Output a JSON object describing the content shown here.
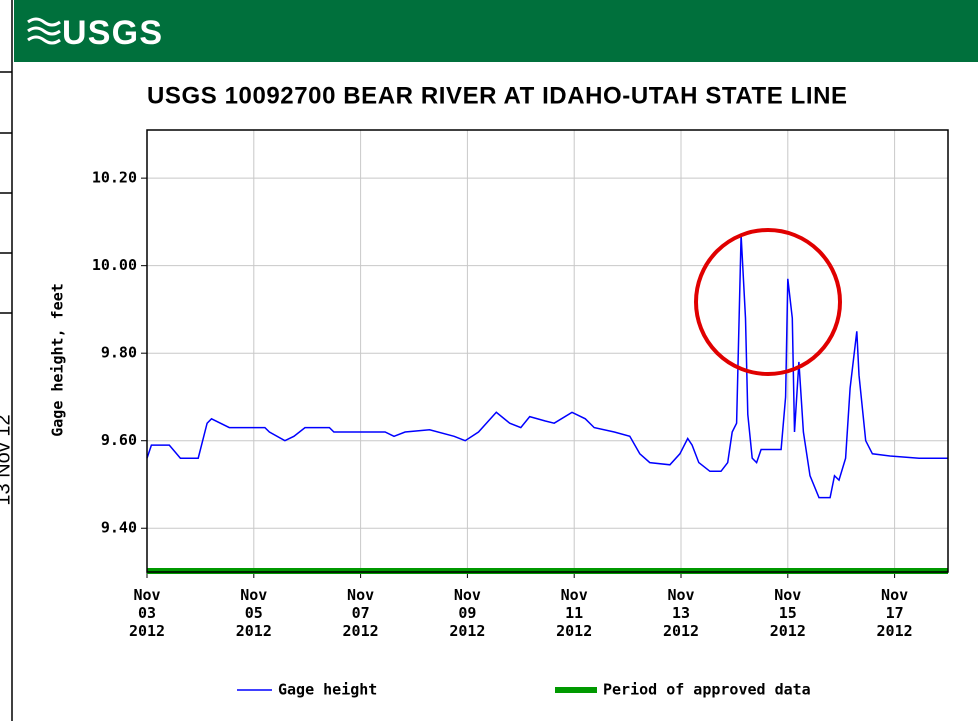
{
  "side_text": "13 Nov 12",
  "logo": "USGS",
  "chart_data": {
    "type": "line",
    "title": "USGS 10092700 BEAR RIVER AT IDAHO-UTAH STATE LINE",
    "y_label": "Gage height, feet",
    "xlim": [
      "2012-11-03 00:00",
      "2012-11-18 00:00"
    ],
    "ylim": [
      9.3,
      10.31
    ],
    "yticks": [
      {
        "value": 9.4,
        "label": "9.40"
      },
      {
        "value": 9.6,
        "label": "9.60"
      },
      {
        "value": 9.8,
        "label": "9.80"
      },
      {
        "value": 10.0,
        "label": "10.00"
      },
      {
        "value": 10.2,
        "label": "10.20"
      }
    ],
    "xticks": [
      {
        "value": "2012-11-03",
        "label": [
          "Nov",
          "03",
          "2012"
        ]
      },
      {
        "value": "2012-11-05",
        "label": [
          "Nov",
          "05",
          "2012"
        ]
      },
      {
        "value": "2012-11-07",
        "label": [
          "Nov",
          "07",
          "2012"
        ]
      },
      {
        "value": "2012-11-09",
        "label": [
          "Nov",
          "09",
          "2012"
        ]
      },
      {
        "value": "2012-11-11",
        "label": [
          "Nov",
          "11",
          "2012"
        ]
      },
      {
        "value": "2012-11-13",
        "label": [
          "Nov",
          "13",
          "2012"
        ]
      },
      {
        "value": "2012-11-15",
        "label": [
          "Nov",
          "15",
          "2012"
        ]
      },
      {
        "value": "2012-11-17",
        "label": [
          "Nov",
          "17",
          "2012"
        ]
      }
    ],
    "grid": true,
    "x": [
      "2012-11-03 00:00",
      "2012-11-03 02:00",
      "2012-11-03 10:00",
      "2012-11-03 15:00",
      "2012-11-03 23:00",
      "2012-11-04 03:00",
      "2012-11-04 05:00",
      "2012-11-04 13:00",
      "2012-11-05 05:00",
      "2012-11-05 07:00",
      "2012-11-05 14:00",
      "2012-11-05 18:00",
      "2012-11-05 23:00",
      "2012-11-06 10:00",
      "2012-11-06 12:00",
      "2012-11-07 11:00",
      "2012-11-07 15:00",
      "2012-11-07 20:00",
      "2012-11-08 07:00",
      "2012-11-08 18:00",
      "2012-11-08 23:00",
      "2012-11-09 05:00",
      "2012-11-09 13:00",
      "2012-11-09 19:00",
      "2012-11-10 00:00",
      "2012-11-10 04:00",
      "2012-11-10 11:00",
      "2012-11-10 15:00",
      "2012-11-10 23:00",
      "2012-11-11 05:00",
      "2012-11-11 09:00",
      "2012-11-11 18:00",
      "2012-11-12 01:00",
      "2012-11-12 05:30",
      "2012-11-12 10:00",
      "2012-11-12 19:00",
      "2012-11-12 23:30",
      "2012-11-13 03:00",
      "2012-11-13 05:00",
      "2012-11-13 08:00",
      "2012-11-13 13:00",
      "2012-11-13 18:00",
      "2012-11-13 21:00",
      "2012-11-13 23:00",
      "2012-11-14 01:00",
      "2012-11-14 03:00",
      "2012-11-14 05:00",
      "2012-11-14 06:00",
      "2012-11-14 08:00",
      "2012-11-14 10:00",
      "2012-11-14 12:00",
      "2012-11-14 21:00",
      "2012-11-14 23:00",
      "2012-11-15 00:00",
      "2012-11-15 02:00",
      "2012-11-15 03:00",
      "2012-11-15 05:00",
      "2012-11-15 07:00",
      "2012-11-15 10:00",
      "2012-11-15 14:00",
      "2012-11-15 19:00",
      "2012-11-15 21:00",
      "2012-11-15 23:00",
      "2012-11-16 02:00",
      "2012-11-16 04:00",
      "2012-11-16 07:00",
      "2012-11-16 08:00",
      "2012-11-16 11:00",
      "2012-11-16 14:00",
      "2012-11-16 22:00",
      "2012-11-17 11:00",
      "2012-11-18 00:00"
    ],
    "series": [
      {
        "name": "Gage height",
        "color": "#0000ff",
        "values": [
          9.56,
          9.59,
          9.59,
          9.56,
          9.56,
          9.64,
          9.65,
          9.63,
          9.63,
          9.62,
          9.6,
          9.61,
          9.63,
          9.63,
          9.62,
          9.62,
          9.61,
          9.62,
          9.625,
          9.61,
          9.6,
          9.62,
          9.665,
          9.64,
          9.63,
          9.655,
          9.645,
          9.64,
          9.665,
          9.65,
          9.63,
          9.62,
          9.61,
          9.57,
          9.55,
          9.545,
          9.57,
          9.605,
          9.59,
          9.55,
          9.53,
          9.53,
          9.55,
          9.62,
          9.64,
          10.07,
          9.88,
          9.66,
          9.56,
          9.55,
          9.58,
          9.58,
          9.7,
          9.97,
          9.88,
          9.62,
          9.78,
          9.62,
          9.52,
          9.47,
          9.47,
          9.52,
          9.51,
          9.56,
          9.72,
          9.85,
          9.75,
          9.6,
          9.57,
          9.565,
          9.56,
          9.56
        ]
      }
    ],
    "periods": [
      {
        "name": "Period of approved data",
        "color": "#009900",
        "start": "2012-11-03 00:00",
        "end": "2012-11-18 00:00"
      }
    ]
  }
}
